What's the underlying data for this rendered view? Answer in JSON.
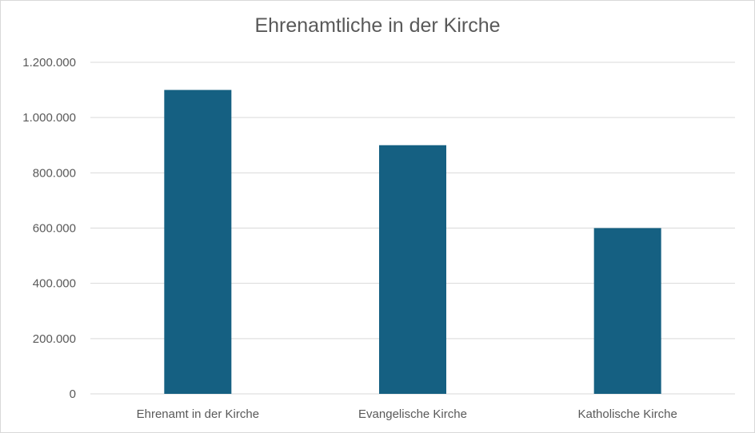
{
  "chart_data": {
    "type": "bar",
    "title": "Ehrenamtliche in der Kirche",
    "xlabel": "",
    "ylabel": "",
    "categories": [
      "Ehrenamt in der Kirche",
      "Evangelische Kirche",
      "Katholische Kirche"
    ],
    "values": [
      1100000,
      900000,
      600000
    ],
    "ylim": [
      0,
      1200000
    ],
    "yticks": [
      0,
      200000,
      400000,
      600000,
      800000,
      1000000,
      1200000
    ],
    "ytick_labels": [
      "0",
      "200.000",
      "400.000",
      "600.000",
      "800.000",
      "1.000.000",
      "1.200.000"
    ],
    "grid": true,
    "legend": "none",
    "bar_color": "#156082",
    "grid_color": "#d9d9d9",
    "text_color": "#595959"
  }
}
